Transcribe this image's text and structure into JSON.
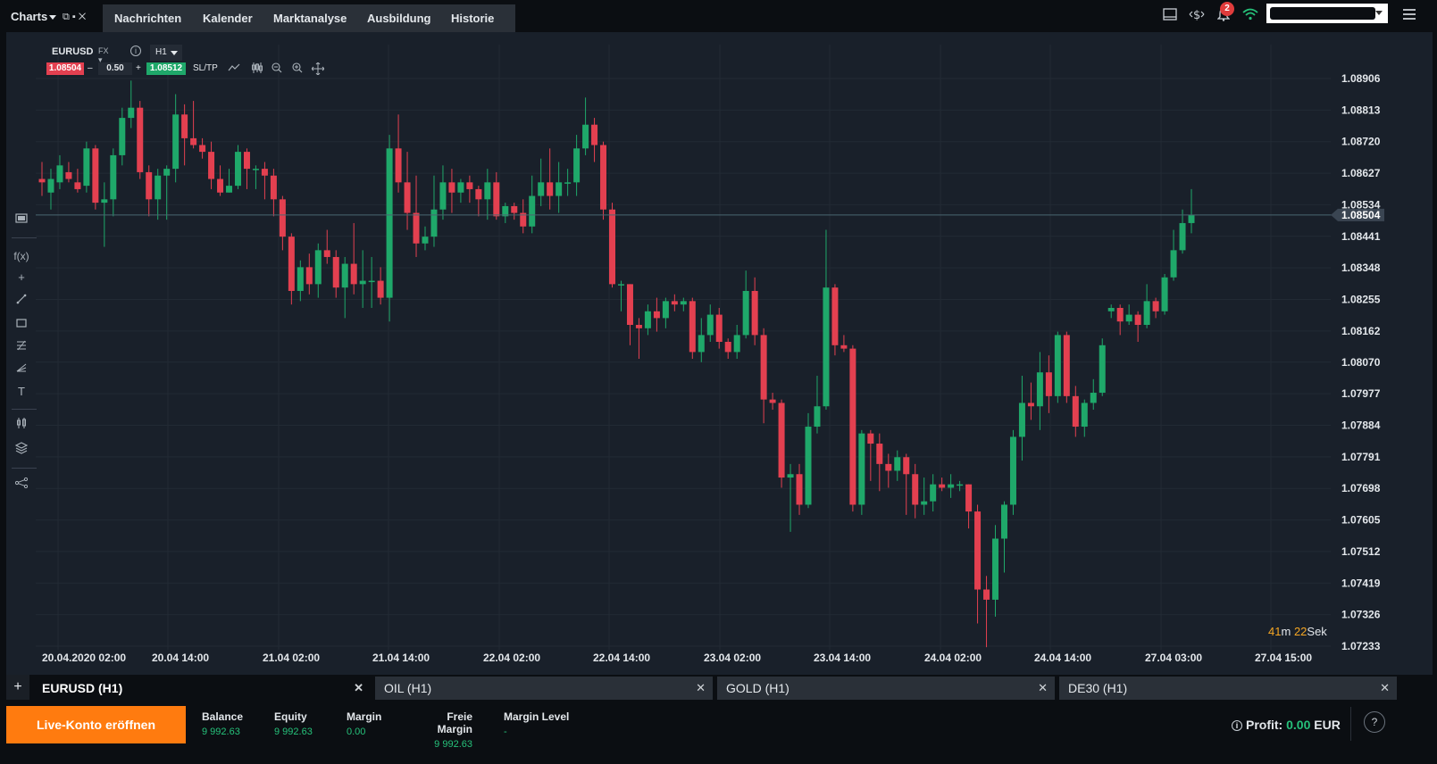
{
  "topbar": {
    "charts_label": "Charts",
    "nav": [
      "Nachrichten",
      "Kalender",
      "Marktanalyse",
      "Ausbildung",
      "Historie"
    ],
    "notification_count": "2"
  },
  "symbol": {
    "name": "EURUSD",
    "type": "FX",
    "timeframe": "H1"
  },
  "trade": {
    "sell": "1.08504",
    "lot": "0.50",
    "buy": "1.08512",
    "sltp": "SL/TP",
    "minus": "–",
    "plus": "+"
  },
  "countdown": {
    "minutes": "41",
    "m": "m",
    "seconds": "22",
    "sek": "Sek"
  },
  "chart_data": {
    "type": "candlestick",
    "symbol": "EURUSD",
    "timeframe": "H1",
    "current_price": 1.08504,
    "y_ticks": [
      "1.08906",
      "1.08813",
      "1.08720",
      "1.08627",
      "1.08534",
      "1.08441",
      "1.08348",
      "1.08255",
      "1.08162",
      "1.08070",
      "1.07977",
      "1.07884",
      "1.07791",
      "1.07698",
      "1.07605",
      "1.07512",
      "1.07419",
      "1.07326",
      "1.07233"
    ],
    "current_price_label": "1.08504",
    "x_ticks": [
      "20.04.2020 02:00",
      "20.04 14:00",
      "21.04 02:00",
      "21.04 14:00",
      "22.04 02:00",
      "22.04 14:00",
      "23.04 02:00",
      "23.04 14:00",
      "24.04 02:00",
      "24.04 14:00",
      "27.04 03:00",
      "27.04 15:00"
    ],
    "ylim": [
      1.0716,
      1.0897
    ],
    "grid": true,
    "candles": [
      [
        1.0861,
        1.086,
        1.0866,
        1.0856
      ],
      [
        1.0857,
        1.0861,
        1.0864,
        1.0852
      ],
      [
        1.086,
        1.0865,
        1.0868,
        1.0858
      ],
      [
        1.0863,
        1.0861,
        1.0866,
        1.086
      ],
      [
        1.086,
        1.0858,
        1.0864,
        1.0857
      ],
      [
        1.0859,
        1.087,
        1.0872,
        1.0857
      ],
      [
        1.087,
        1.0854,
        1.0871,
        1.0852
      ],
      [
        1.0854,
        1.0855,
        1.086,
        1.0841
      ],
      [
        1.0855,
        1.0868,
        1.087,
        1.085
      ],
      [
        1.0868,
        1.0879,
        1.0882,
        1.0865
      ],
      [
        1.0879,
        1.0882,
        1.089,
        1.0876
      ],
      [
        1.0882,
        1.0863,
        1.0884,
        1.0861
      ],
      [
        1.0863,
        1.0855,
        1.0865,
        1.085
      ],
      [
        1.0855,
        1.0862,
        1.0864,
        1.0849
      ],
      [
        1.0862,
        1.0864,
        1.0865,
        1.0849
      ],
      [
        1.0864,
        1.088,
        1.0886,
        1.086
      ],
      [
        1.088,
        1.0873,
        1.0883,
        1.0865
      ],
      [
        1.0873,
        1.0871,
        1.0884,
        1.087
      ],
      [
        1.0871,
        1.0869,
        1.0873,
        1.0867
      ],
      [
        1.0869,
        1.0861,
        1.0872,
        1.0858
      ],
      [
        1.0861,
        1.0857,
        1.0865,
        1.0856
      ],
      [
        1.0857,
        1.0859,
        1.0864,
        1.0857
      ],
      [
        1.0859,
        1.0869,
        1.0871,
        1.0858
      ],
      [
        1.0869,
        1.0864,
        1.087,
        1.0858
      ],
      [
        1.0864,
        1.0864,
        1.0865,
        1.0858
      ],
      [
        1.0864,
        1.0862,
        1.0866,
        1.0855
      ],
      [
        1.0862,
        1.0855,
        1.0864,
        1.085
      ],
      [
        1.0855,
        1.0844,
        1.0856,
        1.084
      ],
      [
        1.0844,
        1.0828,
        1.0845,
        1.0824
      ],
      [
        1.0828,
        1.0835,
        1.0837,
        1.0825
      ],
      [
        1.0835,
        1.083,
        1.0839,
        1.0827
      ],
      [
        1.083,
        1.084,
        1.0842,
        1.0826
      ],
      [
        1.084,
        1.0838,
        1.0846,
        1.0836
      ],
      [
        1.0838,
        1.0829,
        1.084,
        1.0826
      ],
      [
        1.0829,
        1.0836,
        1.0838,
        1.082
      ],
      [
        1.0836,
        1.083,
        1.0848,
        1.0827
      ],
      [
        1.083,
        1.0831,
        1.084,
        1.0823
      ],
      [
        1.0831,
        1.0831,
        1.0838,
        1.0823
      ],
      [
        1.0831,
        1.0826,
        1.0835,
        1.0824
      ],
      [
        1.0826,
        1.087,
        1.0874,
        1.0819
      ],
      [
        1.087,
        1.086,
        1.088,
        1.0857
      ],
      [
        1.086,
        1.0851,
        1.0869,
        1.0846
      ],
      [
        1.0851,
        1.0842,
        1.0862,
        1.0838
      ],
      [
        1.0842,
        1.0844,
        1.0847,
        1.084
      ],
      [
        1.0844,
        1.0852,
        1.0862,
        1.0841
      ],
      [
        1.0852,
        1.086,
        1.0865,
        1.0849
      ],
      [
        1.086,
        1.0857,
        1.0864,
        1.0851
      ],
      [
        1.0857,
        1.086,
        1.0861,
        1.0854
      ],
      [
        1.086,
        1.0858,
        1.0862,
        1.0854
      ],
      [
        1.0858,
        1.0855,
        1.0859,
        1.085
      ],
      [
        1.0855,
        1.086,
        1.0864,
        1.0849
      ],
      [
        1.086,
        1.085,
        1.0863,
        1.0849
      ],
      [
        1.085,
        1.0853,
        1.0854,
        1.0848
      ],
      [
        1.0853,
        1.0851,
        1.0854,
        1.0849
      ],
      [
        1.0851,
        1.0847,
        1.0855,
        1.0845
      ],
      [
        1.0847,
        1.0856,
        1.0862,
        1.0845
      ],
      [
        1.0856,
        1.086,
        1.0867,
        1.0853
      ],
      [
        1.086,
        1.0856,
        1.087,
        1.0852
      ],
      [
        1.0856,
        1.086,
        1.0866,
        1.0851
      ],
      [
        1.086,
        1.086,
        1.0864,
        1.0856
      ],
      [
        1.086,
        1.087,
        1.0874,
        1.0856
      ],
      [
        1.087,
        1.0877,
        1.0885,
        1.0868
      ],
      [
        1.0877,
        1.0871,
        1.0879,
        1.0866
      ],
      [
        1.0871,
        1.0852,
        1.0872,
        1.0849
      ],
      [
        1.0852,
        1.083,
        1.0854,
        1.0829
      ],
      [
        1.083,
        1.083,
        1.0831,
        1.0822
      ],
      [
        1.083,
        1.0818,
        1.083,
        1.0812
      ],
      [
        1.0818,
        1.0817,
        1.082,
        1.0808
      ],
      [
        1.0817,
        1.0822,
        1.0824,
        1.0815
      ],
      [
        1.0822,
        1.082,
        1.0826,
        1.0816
      ],
      [
        1.082,
        1.0825,
        1.0826,
        1.0817
      ],
      [
        1.0825,
        1.0824,
        1.0827,
        1.0822
      ],
      [
        1.0824,
        1.0825,
        1.0826,
        1.0822
      ],
      [
        1.0825,
        1.081,
        1.0826,
        1.0808
      ],
      [
        1.081,
        1.0815,
        1.082,
        1.0807
      ],
      [
        1.0815,
        1.0821,
        1.0824,
        1.0813
      ],
      [
        1.0821,
        1.0813,
        1.0823,
        1.0811
      ],
      [
        1.0813,
        1.081,
        1.0814,
        1.0808
      ],
      [
        1.081,
        1.0815,
        1.0818,
        1.0808
      ],
      [
        1.0815,
        1.0828,
        1.0834,
        1.0814
      ],
      [
        1.0828,
        1.0815,
        1.0832,
        1.0812
      ],
      [
        1.0815,
        1.0796,
        1.0817,
        1.0789
      ],
      [
        1.0796,
        1.0795,
        1.0798,
        1.0793
      ],
      [
        1.0795,
        1.0773,
        1.0796,
        1.077
      ],
      [
        1.0773,
        1.0774,
        1.0777,
        1.0757
      ],
      [
        1.0774,
        1.0765,
        1.0777,
        1.0762
      ],
      [
        1.0765,
        1.0788,
        1.0792,
        1.0764
      ],
      [
        1.0788,
        1.0794,
        1.0803,
        1.0786
      ],
      [
        1.0794,
        1.0829,
        1.0846,
        1.0793
      ],
      [
        1.0829,
        1.0812,
        1.083,
        1.0809
      ],
      [
        1.0812,
        1.0811,
        1.0815,
        1.081
      ],
      [
        1.0811,
        1.0765,
        1.0812,
        1.0763
      ],
      [
        1.0765,
        1.0786,
        1.0787,
        1.0762
      ],
      [
        1.0786,
        1.0783,
        1.0787,
        1.0772
      ],
      [
        1.0783,
        1.0777,
        1.0786,
        1.0769
      ],
      [
        1.0777,
        1.0775,
        1.078,
        1.077
      ],
      [
        1.0775,
        1.0779,
        1.0781,
        1.0772
      ],
      [
        1.0779,
        1.0774,
        1.078,
        1.0762
      ],
      [
        1.0774,
        1.0765,
        1.0777,
        1.0761
      ],
      [
        1.0765,
        1.0766,
        1.0773,
        1.0762
      ],
      [
        1.0766,
        1.0771,
        1.0774,
        1.0763
      ],
      [
        1.0771,
        1.077,
        1.0773,
        1.0769
      ],
      [
        1.077,
        1.0771,
        1.0774,
        1.0767
      ],
      [
        1.0771,
        1.0771,
        1.0772,
        1.0769
      ],
      [
        1.0771,
        1.0763,
        1.0771,
        1.0758
      ],
      [
        1.0763,
        1.074,
        1.0765,
        1.073
      ],
      [
        1.074,
        1.0737,
        1.0744,
        1.0723
      ],
      [
        1.0737,
        1.0755,
        1.0759,
        1.0732
      ],
      [
        1.0755,
        1.0765,
        1.0766,
        1.0745
      ],
      [
        1.0765,
        1.0785,
        1.0787,
        1.0762
      ],
      [
        1.0785,
        1.0795,
        1.0803,
        1.0778
      ],
      [
        1.0795,
        1.0794,
        1.0801,
        1.079
      ],
      [
        1.0794,
        1.0804,
        1.081,
        1.0787
      ],
      [
        1.0804,
        1.0797,
        1.0809,
        1.0792
      ],
      [
        1.0797,
        1.0815,
        1.0816,
        1.0795
      ],
      [
        1.0815,
        1.0797,
        1.0816,
        1.0795
      ],
      [
        1.0797,
        1.0788,
        1.08,
        1.0785
      ],
      [
        1.0788,
        1.0795,
        1.0796,
        1.0785
      ],
      [
        1.0795,
        1.0798,
        1.0802,
        1.0793
      ],
      [
        1.0798,
        1.0812,
        1.0814,
        1.0797
      ],
      [
        1.0822,
        1.0823,
        1.0824,
        1.082
      ],
      [
        1.0823,
        1.0819,
        1.0824,
        1.0815
      ],
      [
        1.0819,
        1.0821,
        1.0824,
        1.0818
      ],
      [
        1.0821,
        1.0818,
        1.0822,
        1.0813
      ],
      [
        1.0818,
        1.0825,
        1.083,
        1.0817
      ],
      [
        1.0825,
        1.0822,
        1.0826,
        1.082
      ],
      [
        1.0822,
        1.0832,
        1.0833,
        1.0821
      ],
      [
        1.0832,
        1.084,
        1.0846,
        1.0831
      ],
      [
        1.084,
        1.0848,
        1.0852,
        1.0839
      ],
      [
        1.0848,
        1.08504,
        1.0858,
        1.0845
      ]
    ]
  },
  "tabs": [
    {
      "label": "EURUSD (H1)",
      "active": true
    },
    {
      "label": "OIL (H1)",
      "active": false
    },
    {
      "label": "GOLD (H1)",
      "active": false
    },
    {
      "label": "DE30 (H1)",
      "active": false
    }
  ],
  "footer": {
    "live_button": "Live-Konto eröffnen",
    "balance_label": "Balance",
    "balance": "9 992.63",
    "equity_label": "Equity",
    "equity": "9 992.63",
    "margin_label": "Margin",
    "margin": "0.00",
    "free_margin_label": "Freie Margin",
    "free_margin": "9 992.63",
    "margin_level_label": "Margin Level",
    "margin_level": "-",
    "profit_label": "Profit:",
    "profit": "0.00",
    "currency": "EUR"
  },
  "colors": {
    "up": "#1fa86a",
    "down": "#e34050",
    "accent": "#ff7b0f",
    "background": "#19202a",
    "grid": "#222a34"
  },
  "icons": [
    "popout-icon",
    "restore-icon",
    "close-icon",
    "layout-icon",
    "dollar-icon",
    "bell-icon",
    "wifi-icon",
    "hamburger-icon"
  ]
}
